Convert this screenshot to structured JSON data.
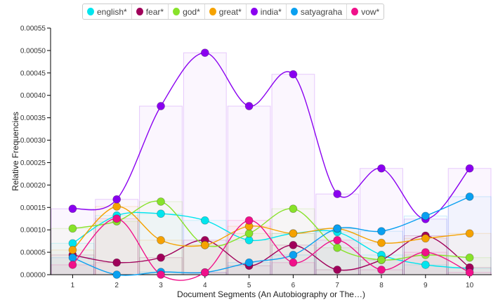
{
  "chart_data": {
    "type": "line",
    "xlabel": "Document Segments (An Autobiography or The…)",
    "ylabel": "Relative Frequencies",
    "ylim": [
      0,
      0.00055
    ],
    "yticks": [
      "0.00000",
      "0.00005",
      "0.00010",
      "0.00015",
      "0.00020",
      "0.00025",
      "0.00030",
      "0.00035",
      "0.00040",
      "0.00045",
      "0.00050",
      "0.00055"
    ],
    "categories": [
      "1",
      "2",
      "3",
      "4",
      "5",
      "6",
      "7",
      "8",
      "9",
      "10"
    ],
    "legend_position": "top",
    "series": [
      {
        "name": "english*",
        "color": "#00e5ee",
        "values": [
          7e-05,
          0.000132,
          0.000136,
          0.000121,
          7.7e-05,
          9.2e-05,
          9.5e-05,
          4.4e-05,
          2.2e-05,
          1.4e-05
        ]
      },
      {
        "name": "fear*",
        "color": "#a0005a",
        "values": [
          4.4e-05,
          2.7e-05,
          3.8e-05,
          7.7e-05,
          2e-05,
          6.6e-05,
          1.1e-05,
          3.3e-05,
          8.7e-05,
          1.6e-05
        ]
      },
      {
        "name": "god*",
        "color": "#88e22a",
        "values": [
          0.000103,
          0.000119,
          0.000163,
          6.6e-05,
          9.2e-05,
          0.000147,
          6e-05,
          3.3e-05,
          4.4e-05,
          3.8e-05
        ]
      },
      {
        "name": "great*",
        "color": "#f5a200",
        "values": [
          5.5e-05,
          0.000152,
          7.7e-05,
          6.6e-05,
          0.000108,
          9.2e-05,
          0.000103,
          7.1e-05,
          8.1e-05,
          9.2e-05
        ]
      },
      {
        "name": "india*",
        "color": "#8a00f0",
        "values": [
          0.000147,
          0.000168,
          0.000376,
          0.000495,
          0.000376,
          0.000447,
          0.00018,
          0.000237,
          0.000124,
          0.000237
        ]
      },
      {
        "name": "satyagraha",
        "color": "#0aa0f0",
        "values": [
          3.8e-05,
          0.0,
          6e-06,
          5e-06,
          2.7e-05,
          4.4e-05,
          0.000103,
          9.7e-05,
          0.000131,
          0.000174
        ]
      },
      {
        "name": "vow*",
        "color": "#f0108a",
        "values": [
          2.2e-05,
          0.000125,
          0.0,
          5e-06,
          0.000121,
          2.7e-05,
          7.7e-05,
          1.1e-05,
          5e-05,
          5e-06
        ]
      }
    ]
  }
}
